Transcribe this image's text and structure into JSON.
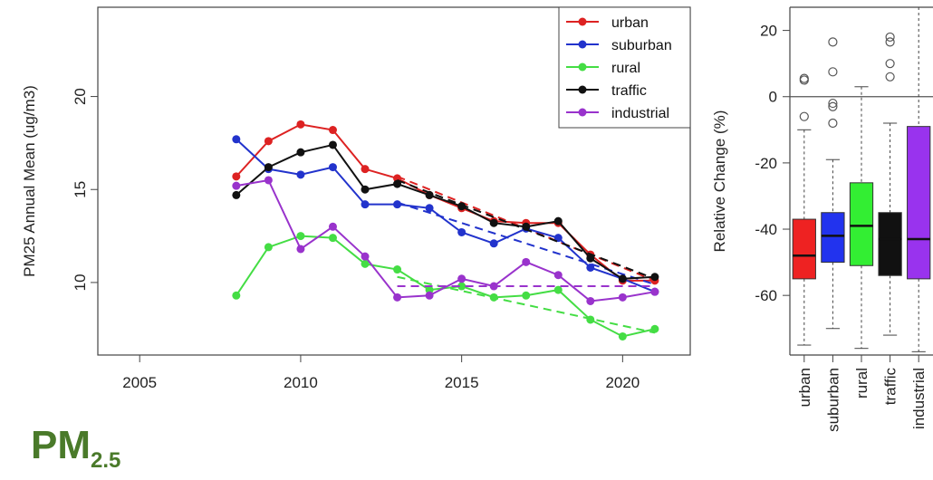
{
  "caption": {
    "main": "PM",
    "sub": "2.5"
  },
  "chart_data": [
    {
      "type": "line",
      "title": "",
      "xlabel": "",
      "ylabel": "PM25 Annual Mean (ug/m3)",
      "xlim": [
        2003.7,
        2022.1
      ],
      "ylim": [
        6.1,
        24.8
      ],
      "xticks": [
        2005,
        2010,
        2015,
        2020
      ],
      "yticks": [
        10,
        15,
        20
      ],
      "legend_position": "top-right",
      "series": [
        {
          "name": "urban",
          "color": "#dd2222",
          "x": [
            2008,
            2009,
            2010,
            2011,
            2012,
            2013,
            2014,
            2015,
            2016,
            2017,
            2018,
            2019,
            2020,
            2021
          ],
          "y": [
            15.7,
            17.6,
            18.5,
            18.2,
            16.1,
            15.6,
            14.7,
            14.0,
            13.3,
            13.2,
            13.2,
            11.5,
            10.1,
            10.1
          ],
          "trend": {
            "x": [
              2013,
              2021
            ],
            "y": [
              15.7,
              10.1
            ]
          }
        },
        {
          "name": "suburban",
          "color": "#2233cc",
          "x": [
            2008,
            2009,
            2010,
            2011,
            2012,
            2013,
            2014,
            2015,
            2016,
            2017,
            2018,
            2019,
            2020,
            2021
          ],
          "y": [
            17.7,
            16.1,
            15.8,
            16.2,
            14.2,
            14.2,
            14.0,
            12.7,
            12.1,
            12.9,
            12.4,
            10.8,
            10.2,
            9.5
          ],
          "trend": {
            "x": [
              2013,
              2021
            ],
            "y": [
              14.3,
              9.9
            ]
          }
        },
        {
          "name": "rural",
          "color": "#44dd44",
          "x": [
            2008,
            2009,
            2010,
            2011,
            2012,
            2013,
            2014,
            2015,
            2016,
            2017,
            2018,
            2019,
            2020,
            2021
          ],
          "y": [
            9.3,
            11.9,
            12.5,
            12.4,
            11.0,
            10.7,
            9.6,
            9.8,
            9.2,
            9.3,
            9.6,
            8.0,
            7.1,
            7.5
          ],
          "trend": {
            "x": [
              2013,
              2021
            ],
            "y": [
              10.3,
              7.3
            ]
          }
        },
        {
          "name": "traffic",
          "color": "#111111",
          "x": [
            2008,
            2009,
            2010,
            2011,
            2012,
            2013,
            2014,
            2015,
            2016,
            2017,
            2018,
            2019,
            2020,
            2021
          ],
          "y": [
            14.7,
            16.2,
            17.0,
            17.4,
            15.0,
            15.3,
            14.7,
            14.1,
            13.2,
            13.0,
            13.3,
            11.3,
            10.2,
            10.3
          ],
          "trend": {
            "x": [
              2013,
              2021
            ],
            "y": [
              15.5,
              10.2
            ]
          }
        },
        {
          "name": "industrial",
          "color": "#9933cc",
          "x": [
            2008,
            2009,
            2010,
            2011,
            2012,
            2013,
            2014,
            2015,
            2016,
            2017,
            2018,
            2019,
            2020,
            2021
          ],
          "y": [
            15.2,
            15.5,
            11.8,
            13.0,
            11.4,
            9.2,
            9.3,
            10.2,
            9.8,
            11.1,
            10.4,
            9.0,
            9.2,
            9.5
          ],
          "trend": {
            "x": [
              2013,
              2021
            ],
            "y": [
              9.8,
              9.8
            ]
          }
        }
      ]
    },
    {
      "type": "box",
      "title": "",
      "ylabel": "Relative Change (%)",
      "ylim": [
        -78,
        27
      ],
      "yticks": [
        -60,
        -40,
        -20,
        0,
        20
      ],
      "reference_line": 0,
      "categories": [
        "urban",
        "suburban",
        "rural",
        "traffic",
        "industrial"
      ],
      "boxes": [
        {
          "category": "urban",
          "color": "#ee2222",
          "whisker_low": -75,
          "q1": -55,
          "median": -48,
          "q3": -37,
          "whisker_high": -10,
          "outliers": [
            5,
            5.5,
            -6
          ]
        },
        {
          "category": "suburban",
          "color": "#2233ee",
          "whisker_low": -70,
          "q1": -50,
          "median": -42,
          "q3": -35,
          "whisker_high": -19,
          "outliers": [
            16.5,
            7.5,
            -2,
            -3,
            -8
          ]
        },
        {
          "category": "rural",
          "color": "#33ee33",
          "whisker_low": -76,
          "q1": -51,
          "median": -39,
          "q3": -26,
          "whisker_high": 3,
          "outliers": []
        },
        {
          "category": "traffic",
          "color": "#111111",
          "whisker_low": -72,
          "q1": -54,
          "median": -43,
          "q3": -35,
          "whisker_high": -8,
          "outliers": [
            18,
            16.5,
            10,
            6
          ]
        },
        {
          "category": "industrial",
          "color": "#9933ee",
          "whisker_low": -77,
          "q1": -55,
          "median": -43,
          "q3": -9,
          "whisker_high": 27,
          "outliers": []
        }
      ]
    }
  ]
}
